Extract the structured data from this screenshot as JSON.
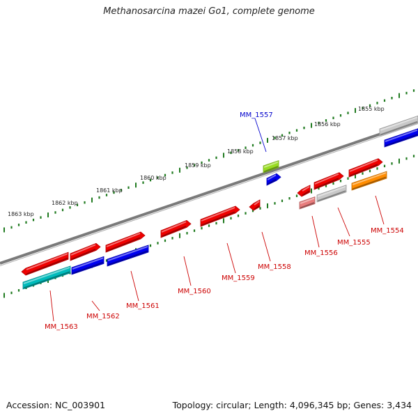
{
  "title": "Methanosarcina mazei Go1, complete genome",
  "footer": {
    "accession": "Accession: NC_003901",
    "summary": "Topology: circular; Length: 4,096,345 bp; Genes: 3,434"
  },
  "colors": {
    "backbone": "#7a7a7a",
    "tick": "#1f7a1f",
    "label_red": "#cc0000",
    "label_blue": "#0000cc"
  },
  "kbp_labels": [
    "1863 kbp",
    "1862 kbp",
    "1861 kbp",
    "1860 kbp",
    "1859 kbp",
    "1858 kbp",
    "1857 kbp",
    "1856 kbp",
    "1855 kbp"
  ],
  "gene_labels": [
    {
      "name": "MM_1557",
      "color": "blue"
    },
    {
      "name": "MM_1554",
      "color": "red"
    },
    {
      "name": "MM_1555",
      "color": "red"
    },
    {
      "name": "MM_1556",
      "color": "red"
    },
    {
      "name": "MM_1558",
      "color": "red"
    },
    {
      "name": "MM_1559",
      "color": "red"
    },
    {
      "name": "MM_1560",
      "color": "red"
    },
    {
      "name": "MM_1561",
      "color": "red"
    },
    {
      "name": "MM_1562",
      "color": "red"
    },
    {
      "name": "MM_1563",
      "color": "red"
    }
  ],
  "features": [
    {
      "id": "cds-1555-1554-top",
      "color": "#ee0000",
      "dir": "right"
    },
    {
      "id": "cds-1555-top",
      "color": "#ee0000",
      "dir": "right"
    },
    {
      "id": "gene-1555",
      "color": "#c8c8c8",
      "dir": "none"
    },
    {
      "id": "gene-1554",
      "color": "#ff8c00",
      "dir": "none"
    },
    {
      "id": "cds-1556-top",
      "color": "#ee0000",
      "dir": "left"
    },
    {
      "id": "gene-1556",
      "color": "#e87c7c",
      "dir": "none"
    },
    {
      "id": "cds-1557",
      "color": "#0000ee",
      "dir": "right"
    },
    {
      "id": "gene-1557",
      "color": "#99dd22",
      "dir": "none"
    },
    {
      "id": "cds-1558",
      "color": "#ee0000",
      "dir": "left"
    },
    {
      "id": "cds-1559",
      "color": "#ee0000",
      "dir": "right"
    },
    {
      "id": "cds-1560",
      "color": "#ee0000",
      "dir": "right"
    },
    {
      "id": "cds-1561-top",
      "color": "#ee0000",
      "dir": "right"
    },
    {
      "id": "gene-1561",
      "color": "#0000ee",
      "dir": "none"
    },
    {
      "id": "cds-1562-top",
      "color": "#ee0000",
      "dir": "right"
    },
    {
      "id": "gene-1562",
      "color": "#0000ee",
      "dir": "none"
    },
    {
      "id": "cds-1563-top",
      "color": "#ee0000",
      "dir": "left"
    },
    {
      "id": "gene-1563",
      "color": "#00bbbb",
      "dir": "none"
    },
    {
      "id": "gene-1553-grey",
      "color": "#c8c8c8",
      "dir": "none"
    },
    {
      "id": "gene-1553-blue",
      "color": "#0000ee",
      "dir": "none"
    }
  ]
}
